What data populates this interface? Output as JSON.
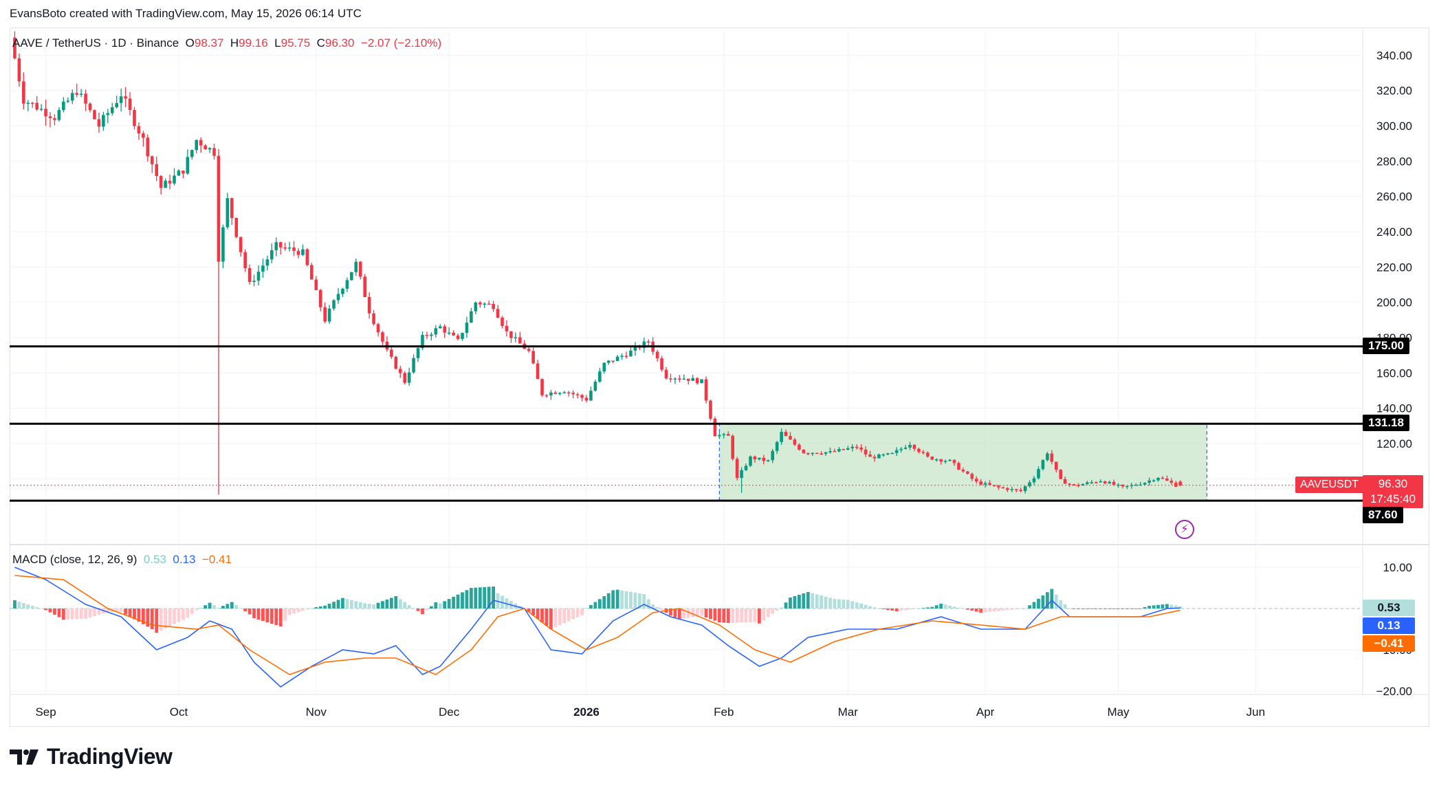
{
  "header": {
    "caption": "EvansBoto created with TradingView.com, May 15, 2026 06:14 UTC"
  },
  "legend": {
    "symbol": "AAVE / TetherUS · 1D · Binance",
    "open_label": "O",
    "open": "98.37",
    "high_label": "H",
    "high": "99.16",
    "low_label": "L",
    "low": "95.75",
    "close_label": "C",
    "close": "96.30",
    "change": "−2.07 (−2.10%)"
  },
  "macd_legend": {
    "title": "MACD (close, 12, 26, 9)",
    "hist": "0.53",
    "macd": "0.13",
    "signal": "−0.41"
  },
  "price_tag": {
    "symbol": "AAVEUSDT",
    "price": "96.30",
    "countdown": "17:45:40"
  },
  "levels": [
    {
      "label": "175.00",
      "value": 175.0
    },
    {
      "label": "131.18",
      "value": 131.18
    },
    {
      "label": "87.60",
      "value": 87.6
    }
  ],
  "macd_tags": [
    {
      "label": "0.53",
      "value": 0.53,
      "bg": "#b2dfdb",
      "fg": "#131722"
    },
    {
      "label": "0.13",
      "value": 0.13,
      "bg": "#2962ff",
      "fg": "#ffffff"
    },
    {
      "label": "−0.41",
      "value": -0.41,
      "bg": "#ff6d00",
      "fg": "#ffffff"
    }
  ],
  "brand": {
    "name": "TradingView"
  },
  "colors": {
    "up": "#089981",
    "down": "#f23645",
    "macd": "#2962ff",
    "signal": "#ff6d00",
    "zone": "#c8e6c9"
  },
  "chart_data": {
    "type": "candlestick",
    "price_axis": {
      "ylim": [
        80,
        345
      ],
      "ticks": [
        "340.00",
        "320.00",
        "300.00",
        "280.00",
        "260.00",
        "240.00",
        "220.00",
        "200.00",
        "180.00",
        "160.00",
        "140.00",
        "120.00",
        "100.00"
      ]
    },
    "macd_axis": {
      "ylim": [
        -22,
        13
      ],
      "ticks": [
        "10.00",
        "0.00",
        "−10.00",
        "−20.00"
      ]
    },
    "time_axis": [
      "Sep",
      "Oct",
      "Nov",
      "Dec",
      "2026",
      "Feb",
      "Mar",
      "Apr",
      "May",
      "Jun"
    ],
    "range_zone": {
      "from": "2026-01-31",
      "to": "2026-05-21",
      "low": 87.6,
      "high": 131.18
    },
    "waypoints": [
      [
        "2025-08-25",
        350
      ],
      [
        "2025-08-28",
        315
      ],
      [
        "2025-09-04",
        305
      ],
      [
        "2025-09-09",
        320
      ],
      [
        "2025-09-14",
        300
      ],
      [
        "2025-09-19",
        318
      ],
      [
        "2025-09-24",
        292
      ],
      [
        "2025-09-28",
        265
      ],
      [
        "2025-10-03",
        275
      ],
      [
        "2025-10-06",
        292
      ],
      [
        "2025-10-10",
        285
      ],
      [
        "2025-10-11",
        225
      ],
      [
        "2025-10-13",
        258
      ],
      [
        "2025-10-18",
        210
      ],
      [
        "2025-10-24",
        232
      ],
      [
        "2025-10-30",
        228
      ],
      [
        "2025-11-04",
        190
      ],
      [
        "2025-11-07",
        205
      ],
      [
        "2025-11-11",
        222
      ],
      [
        "2025-11-14",
        195
      ],
      [
        "2025-11-18",
        172
      ],
      [
        "2025-11-22",
        155
      ],
      [
        "2025-11-26",
        180
      ],
      [
        "2025-11-30",
        186
      ],
      [
        "2025-12-04",
        178
      ],
      [
        "2025-12-08",
        200
      ],
      [
        "2025-12-12",
        198
      ],
      [
        "2025-12-15",
        183
      ],
      [
        "2025-12-20",
        172
      ],
      [
        "2025-12-23",
        148
      ],
      [
        "2025-12-28",
        150
      ],
      [
        "2026-01-02",
        145
      ],
      [
        "2026-01-06",
        165
      ],
      [
        "2026-01-12",
        172
      ],
      [
        "2026-01-16",
        178
      ],
      [
        "2026-01-20",
        158
      ],
      [
        "2026-01-24",
        157
      ],
      [
        "2026-01-28",
        155
      ],
      [
        "2026-01-31",
        125
      ],
      [
        "2026-02-03",
        124
      ],
      [
        "2026-02-05",
        100
      ],
      [
        "2026-02-08",
        112
      ],
      [
        "2026-02-12",
        110
      ],
      [
        "2026-02-15",
        126
      ],
      [
        "2026-02-20",
        115
      ],
      [
        "2026-02-26",
        115
      ],
      [
        "2026-03-04",
        118
      ],
      [
        "2026-03-07",
        112
      ],
      [
        "2026-03-12",
        114
      ],
      [
        "2026-03-16",
        120
      ],
      [
        "2026-03-20",
        112
      ],
      [
        "2026-03-25",
        110
      ],
      [
        "2026-03-31",
        98
      ],
      [
        "2026-04-05",
        95
      ],
      [
        "2026-04-10",
        93
      ],
      [
        "2026-04-13",
        101
      ],
      [
        "2026-04-16",
        115
      ],
      [
        "2026-04-19",
        99
      ],
      [
        "2026-04-22",
        96
      ],
      [
        "2026-04-28",
        99
      ],
      [
        "2026-05-03",
        95
      ],
      [
        "2026-05-08",
        98
      ],
      [
        "2026-05-11",
        101
      ],
      [
        "2026-05-15",
        96.3
      ]
    ],
    "last_candle": {
      "date": "2026-05-15",
      "open": 98.37,
      "high": 99.16,
      "low": 95.75,
      "close": 96.3
    },
    "wicks": [
      [
        "2025-10-10",
        91
      ],
      [
        "2026-02-05",
        92
      ]
    ],
    "macd_waypoints": [
      [
        "2025-08-25",
        10
      ],
      [
        "2025-09-01",
        7
      ],
      [
        "2025-09-10",
        1
      ],
      [
        "2025-09-18",
        -2
      ],
      [
        "2025-09-26",
        -10
      ],
      [
        "2025-10-03",
        -7
      ],
      [
        "2025-10-08",
        -3
      ],
      [
        "2025-10-13",
        -5
      ],
      [
        "2025-10-18",
        -13
      ],
      [
        "2025-10-24",
        -19
      ],
      [
        "2025-10-31",
        -14
      ],
      [
        "2025-11-07",
        -10
      ],
      [
        "2025-11-14",
        -11
      ],
      [
        "2025-11-19",
        -9
      ],
      [
        "2025-11-25",
        -16
      ],
      [
        "2025-11-29",
        -14
      ],
      [
        "2025-12-06",
        -5
      ],
      [
        "2025-12-11",
        2
      ],
      [
        "2025-12-18",
        0
      ],
      [
        "2025-12-24",
        -10
      ],
      [
        "2025-12-31",
        -11
      ],
      [
        "2026-01-07",
        -3
      ],
      [
        "2026-01-14",
        1
      ],
      [
        "2026-01-20",
        -2
      ],
      [
        "2026-01-27",
        -4
      ],
      [
        "2026-02-02",
        -9
      ],
      [
        "2026-02-09",
        -14
      ],
      [
        "2026-02-14",
        -12
      ],
      [
        "2026-02-20",
        -7
      ],
      [
        "2026-03-01",
        -5
      ],
      [
        "2026-03-12",
        -5
      ],
      [
        "2026-03-22",
        -2
      ],
      [
        "2026-03-31",
        -5
      ],
      [
        "2026-04-10",
        -5
      ],
      [
        "2026-04-16",
        2
      ],
      [
        "2026-04-20",
        -2
      ],
      [
        "2026-04-28",
        -2
      ],
      [
        "2026-05-06",
        -2
      ],
      [
        "2026-05-12",
        0
      ],
      [
        "2026-05-15",
        0.13
      ]
    ],
    "signal_waypoints": [
      [
        "2025-08-25",
        8
      ],
      [
        "2025-09-05",
        7
      ],
      [
        "2025-09-15",
        0
      ],
      [
        "2025-09-25",
        -4
      ],
      [
        "2025-10-05",
        -5
      ],
      [
        "2025-10-10",
        -4
      ],
      [
        "2025-10-17",
        -10
      ],
      [
        "2025-10-26",
        -16
      ],
      [
        "2025-11-03",
        -13
      ],
      [
        "2025-11-12",
        -12
      ],
      [
        "2025-11-19",
        -12
      ],
      [
        "2025-11-28",
        -16
      ],
      [
        "2025-12-06",
        -10
      ],
      [
        "2025-12-12",
        -2
      ],
      [
        "2025-12-18",
        0
      ],
      [
        "2025-12-24",
        -5
      ],
      [
        "2026-01-01",
        -10
      ],
      [
        "2026-01-08",
        -7
      ],
      [
        "2026-01-16",
        -1
      ],
      [
        "2026-01-22",
        0
      ],
      [
        "2026-01-31",
        -4
      ],
      [
        "2026-02-08",
        -10
      ],
      [
        "2026-02-16",
        -13
      ],
      [
        "2026-02-26",
        -8
      ],
      [
        "2026-03-08",
        -5
      ],
      [
        "2026-03-20",
        -3
      ],
      [
        "2026-03-31",
        -4
      ],
      [
        "2026-04-10",
        -5
      ],
      [
        "2026-04-18",
        -2
      ],
      [
        "2026-04-28",
        -2
      ],
      [
        "2026-05-08",
        -2
      ],
      [
        "2026-05-15",
        -0.41
      ]
    ]
  }
}
